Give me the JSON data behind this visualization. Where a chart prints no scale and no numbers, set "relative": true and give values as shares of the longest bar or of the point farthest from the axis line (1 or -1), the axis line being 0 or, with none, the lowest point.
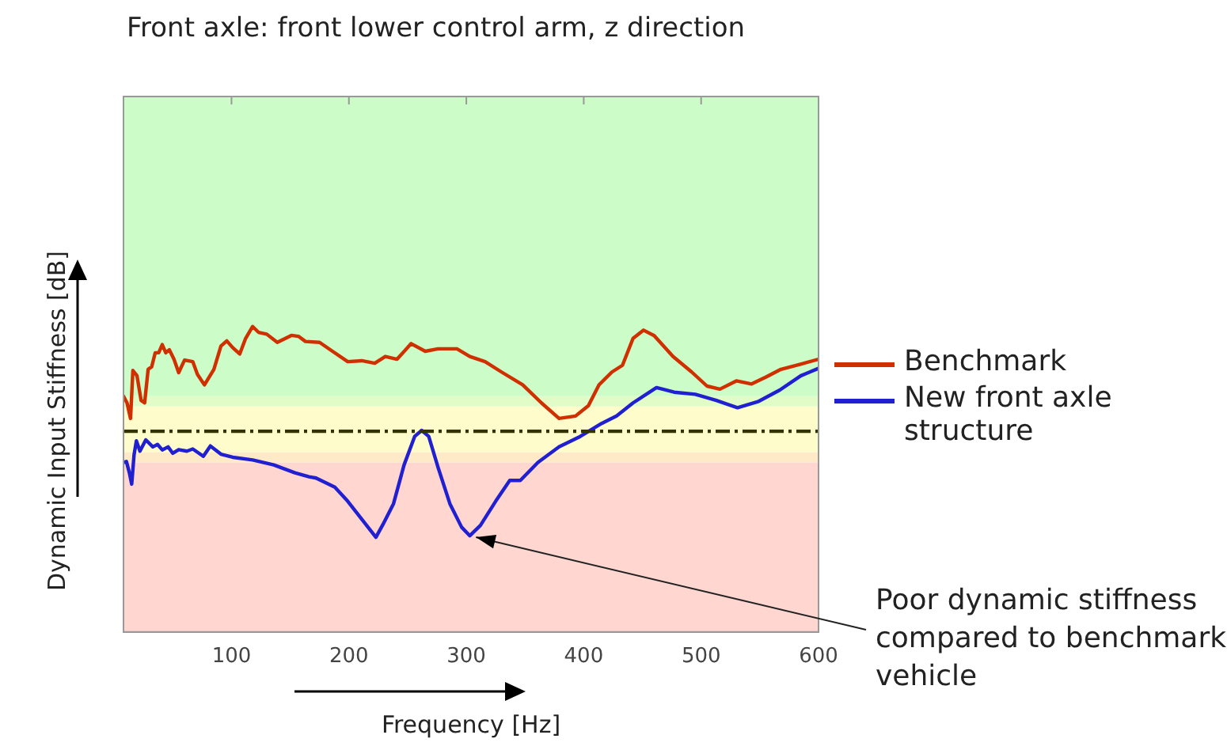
{
  "chart_data": {
    "type": "line",
    "title": "Front axle: front lower control arm, z direction",
    "xlabel": "Frequency [Hz]",
    "ylabel": "Dynamic Input Stiffness [dB]",
    "relative": true,
    "xlim": [
      8,
      600
    ],
    "xticks": [
      100,
      200,
      300,
      400,
      500,
      600
    ],
    "grid": false,
    "legend": "right",
    "marker": "none",
    "line_style": "solid",
    "series": [
      {
        "name": "Benchmark",
        "color": "#d03000",
        "x": [
          8,
          11,
          14,
          16,
          19.5,
          23,
          26,
          29,
          32,
          35,
          38,
          41,
          44,
          47,
          51,
          55,
          60,
          67,
          71,
          77,
          85,
          91,
          96,
          101,
          107,
          112,
          118,
          123,
          130,
          139,
          151,
          157,
          163,
          175,
          186,
          199,
          211,
          222,
          231,
          241,
          253,
          265,
          276,
          292,
          303,
          316,
          330,
          348,
          364,
          379,
          393,
          404,
          413,
          424,
          433,
          442,
          451,
          460,
          476,
          492,
          505,
          516,
          530,
          543,
          555,
          568,
          584,
          600
        ],
        "values": [
          0.772,
          0.75,
          0.699,
          0.856,
          0.839,
          0.758,
          0.75,
          0.86,
          0.868,
          0.914,
          0.914,
          0.941,
          0.914,
          0.924,
          0.893,
          0.849,
          0.89,
          0.885,
          0.843,
          0.809,
          0.86,
          0.936,
          0.953,
          0.931,
          0.91,
          0.961,
          1,
          0.981,
          0.975,
          0.948,
          0.971,
          0.968,
          0.951,
          0.948,
          0.919,
          0.885,
          0.888,
          0.88,
          0.902,
          0.893,
          0.944,
          0.919,
          0.927,
          0.927,
          0.902,
          0.885,
          0.851,
          0.809,
          0.75,
          0.699,
          0.707,
          0.741,
          0.809,
          0.851,
          0.873,
          0.961,
          0.988,
          0.97,
          0.902,
          0.851,
          0.805,
          0.795,
          0.822,
          0.812,
          0.834,
          0.86,
          0.876,
          0.893
        ]
      },
      {
        "name": "New front axle structure",
        "color": "#2020d0",
        "x": [
          8,
          10.5,
          13,
          15,
          17,
          19,
          22,
          27,
          33,
          37,
          41,
          46,
          50,
          55,
          62,
          67,
          76,
          82,
          91,
          101,
          118,
          136,
          154,
          166,
          172,
          188,
          199,
          211,
          223,
          229,
          238,
          247,
          256,
          262,
          268,
          276,
          286,
          296,
          303,
          312,
          325,
          337,
          346,
          361,
          379,
          397,
          415,
          428,
          442,
          462,
          477,
          495,
          513,
          531,
          549,
          567,
          585,
          600
        ],
        "values": [
          0.555,
          0.558,
          0.521,
          0.484,
          0.58,
          0.626,
          0.592,
          0.629,
          0.606,
          0.614,
          0.596,
          0.606,
          0.585,
          0.597,
          0.592,
          0.599,
          0.575,
          0.609,
          0.582,
          0.572,
          0.563,
          0.547,
          0.521,
          0.508,
          0.504,
          0.474,
          0.428,
          0.369,
          0.31,
          0.352,
          0.42,
          0.547,
          0.64,
          0.66,
          0.64,
          0.538,
          0.42,
          0.343,
          0.315,
          0.349,
          0.428,
          0.496,
          0.496,
          0.555,
          0.606,
          0.64,
          0.682,
          0.707,
          0.75,
          0.8,
          0.785,
          0.778,
          0.758,
          0.734,
          0.755,
          0.792,
          0.839,
          0.863
        ]
      }
    ],
    "ref_lines": [
      {
        "axis": "y",
        "value": 0.657,
        "color": "#333300",
        "line_style": "dashdot"
      }
    ],
    "bands": [
      {
        "axis": "y",
        "from": 0,
        "to": 0.555,
        "color": "#ffd6d0"
      },
      {
        "axis": "y",
        "from": 0.555,
        "to": 0.589,
        "color": "#ffeac8"
      },
      {
        "axis": "y",
        "from": 0.589,
        "to": 0.738,
        "color": "#fffccc"
      },
      {
        "axis": "y",
        "from": 0.738,
        "to": 0.772,
        "color": "#e2fcc8"
      },
      {
        "axis": "y",
        "from": 0.772,
        "to": 1.753,
        "color": "#ccfcc8"
      }
    ],
    "annotations": [
      {
        "text": "Poor dynamic stiffness compared to benchmark vehicle",
        "x": 303,
        "y": 0.315
      }
    ]
  }
}
